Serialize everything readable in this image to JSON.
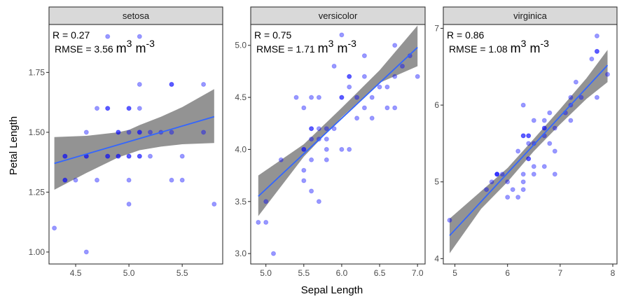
{
  "chart_data": {
    "type": "scatter",
    "title": "",
    "xlabel": "Sepal Length",
    "ylabel": "Petal Length",
    "grid": false,
    "legend": "none",
    "point_color": "#0000ff",
    "fit_color": "#3366ff",
    "ribbon_color": "#808080",
    "strip_color": "#d9d9d9",
    "facets": [
      {
        "strip_label": "setosa",
        "annotation_r": "R = 0.27",
        "annotation_rmse": "RMSE = 3.56",
        "annotation_unit_base1": "m",
        "annotation_unit_exp1": "3",
        "annotation_unit_base2": "m",
        "annotation_unit_exp2": "-3",
        "xlim": [
          4.25,
          5.88
        ],
        "ylim": [
          0.95,
          1.95
        ],
        "xticks": [
          4.5,
          5.0,
          5.5
        ],
        "xtick_labels": [
          "4.5",
          "5.0",
          "5.5"
        ],
        "yticks": [
          1.0,
          1.25,
          1.5,
          1.75
        ],
        "ytick_labels": [
          "1.00",
          "1.25",
          "1.50",
          "1.75"
        ],
        "fit": {
          "x": [
            4.3,
            5.8
          ],
          "y": [
            1.37,
            1.565
          ]
        },
        "ribbon": {
          "x": [
            4.3,
            4.6,
            4.9,
            5.0,
            5.1,
            5.3,
            5.5,
            5.8
          ],
          "lower": [
            1.26,
            1.33,
            1.395,
            1.41,
            1.425,
            1.44,
            1.45,
            1.455
          ],
          "upper": [
            1.48,
            1.485,
            1.5,
            1.51,
            1.53,
            1.565,
            1.605,
            1.68
          ]
        },
        "points": [
          [
            4.3,
            1.1
          ],
          [
            4.4,
            1.4
          ],
          [
            4.4,
            1.3
          ],
          [
            4.4,
            1.3
          ],
          [
            4.4,
            1.4
          ],
          [
            4.5,
            1.3
          ],
          [
            4.6,
            1.5
          ],
          [
            4.6,
            1.4
          ],
          [
            4.6,
            1.4
          ],
          [
            4.6,
            1.0
          ],
          [
            4.7,
            1.6
          ],
          [
            4.7,
            1.3
          ],
          [
            4.8,
            1.6
          ],
          [
            4.8,
            1.6
          ],
          [
            4.8,
            1.4
          ],
          [
            4.8,
            1.4
          ],
          [
            4.8,
            1.9
          ],
          [
            4.9,
            1.5
          ],
          [
            4.9,
            1.5
          ],
          [
            4.9,
            1.4
          ],
          [
            4.9,
            1.4
          ],
          [
            5.0,
            1.6
          ],
          [
            5.0,
            1.6
          ],
          [
            5.0,
            1.5
          ],
          [
            5.0,
            1.4
          ],
          [
            5.0,
            1.4
          ],
          [
            5.0,
            1.3
          ],
          [
            5.0,
            1.2
          ],
          [
            5.1,
            1.9
          ],
          [
            5.1,
            1.7
          ],
          [
            5.1,
            1.6
          ],
          [
            5.1,
            1.5
          ],
          [
            5.1,
            1.5
          ],
          [
            5.1,
            1.4
          ],
          [
            5.1,
            1.4
          ],
          [
            5.2,
            1.5
          ],
          [
            5.2,
            1.4
          ],
          [
            5.3,
            1.5
          ],
          [
            5.4,
            1.7
          ],
          [
            5.4,
            1.7
          ],
          [
            5.4,
            1.5
          ],
          [
            5.4,
            1.3
          ],
          [
            5.5,
            1.4
          ],
          [
            5.5,
            1.3
          ],
          [
            5.7,
            1.7
          ],
          [
            5.7,
            1.5
          ],
          [
            5.8,
            1.2
          ]
        ]
      },
      {
        "strip_label": "versicolor",
        "annotation_r": "R = 0.75",
        "annotation_rmse": "RMSE = 1.71",
        "annotation_unit_base1": "m",
        "annotation_unit_exp1": "3",
        "annotation_unit_base2": "m",
        "annotation_unit_exp2": "-3",
        "xlim": [
          4.8,
          7.1
        ],
        "ylim": [
          2.9,
          5.2
        ],
        "xticks": [
          5.0,
          5.5,
          6.0,
          6.5,
          7.0
        ],
        "xtick_labels": [
          "5.0",
          "5.5",
          "6.0",
          "6.5",
          "7.0"
        ],
        "yticks": [
          3.0,
          3.5,
          4.0,
          4.5,
          5.0
        ],
        "ytick_labels": [
          "3.0",
          "3.5",
          "4.0",
          "4.5",
          "5.0"
        ],
        "fit": {
          "x": [
            4.9,
            7.0
          ],
          "y": [
            3.55,
            4.98
          ]
        },
        "ribbon": {
          "x": [
            4.9,
            5.5,
            6.0,
            6.5,
            7.0
          ],
          "lower": [
            3.36,
            3.93,
            4.31,
            4.64,
            4.8
          ],
          "upper": [
            3.75,
            4.05,
            4.4,
            4.76,
            5.19
          ]
        },
        "points": [
          [
            4.9,
            3.3
          ],
          [
            5.0,
            3.5
          ],
          [
            5.0,
            3.3
          ],
          [
            5.1,
            3.0
          ],
          [
            5.2,
            3.9
          ],
          [
            5.4,
            4.5
          ],
          [
            5.5,
            4.0
          ],
          [
            5.5,
            4.0
          ],
          [
            5.5,
            3.8
          ],
          [
            5.5,
            3.7
          ],
          [
            5.5,
            4.4
          ],
          [
            5.6,
            4.5
          ],
          [
            5.6,
            4.2
          ],
          [
            5.6,
            4.2
          ],
          [
            5.6,
            4.1
          ],
          [
            5.6,
            3.9
          ],
          [
            5.6,
            3.6
          ],
          [
            5.7,
            4.5
          ],
          [
            5.7,
            4.2
          ],
          [
            5.7,
            4.1
          ],
          [
            5.7,
            3.5
          ],
          [
            5.8,
            4.1
          ],
          [
            5.8,
            4.0
          ],
          [
            5.8,
            3.9
          ],
          [
            5.8,
            4.2
          ],
          [
            5.9,
            4.8
          ],
          [
            5.9,
            4.2
          ],
          [
            6.0,
            4.5
          ],
          [
            6.0,
            4.5
          ],
          [
            6.0,
            4.0
          ],
          [
            6.0,
            5.1
          ],
          [
            6.1,
            4.7
          ],
          [
            6.1,
            4.7
          ],
          [
            6.1,
            4.6
          ],
          [
            6.1,
            4.0
          ],
          [
            6.2,
            4.5
          ],
          [
            6.2,
            4.3
          ],
          [
            6.3,
            4.9
          ],
          [
            6.3,
            4.7
          ],
          [
            6.3,
            4.4
          ],
          [
            6.4,
            4.5
          ],
          [
            6.4,
            4.3
          ],
          [
            6.5,
            4.6
          ],
          [
            6.6,
            4.6
          ],
          [
            6.6,
            4.4
          ],
          [
            6.7,
            5.0
          ],
          [
            6.7,
            4.7
          ],
          [
            6.7,
            4.4
          ],
          [
            6.8,
            4.8
          ],
          [
            6.9,
            4.9
          ],
          [
            7.0,
            4.7
          ]
        ]
      },
      {
        "strip_label": "virginica",
        "annotation_r": "R = 0.86",
        "annotation_rmse": "RMSE = 1.08",
        "annotation_unit_base1": "m",
        "annotation_unit_exp1": "3",
        "annotation_unit_base2": "m",
        "annotation_unit_exp2": "-3",
        "xlim": [
          4.78,
          8.08
        ],
        "ylim": [
          3.93,
          7.05
        ],
        "xticks": [
          5,
          6,
          7,
          8
        ],
        "xtick_labels": [
          "5",
          "6",
          "7",
          "8"
        ],
        "yticks": [
          4,
          5,
          6,
          7
        ],
        "ytick_labels": [
          "4",
          "5",
          "6",
          "7"
        ],
        "fit": {
          "x": [
            4.9,
            7.9
          ],
          "y": [
            4.3,
            6.52
          ]
        },
        "ribbon": {
          "x": [
            4.9,
            5.5,
            6.0,
            6.5,
            7.0,
            7.5,
            7.9
          ],
          "lower": [
            4.07,
            4.65,
            5.0,
            5.4,
            5.75,
            6.08,
            6.3
          ],
          "upper": [
            4.52,
            4.88,
            5.18,
            5.56,
            5.95,
            6.35,
            6.72
          ]
        },
        "points": [
          [
            4.9,
            4.5
          ],
          [
            5.6,
            4.9
          ],
          [
            5.7,
            5.0
          ],
          [
            5.8,
            5.1
          ],
          [
            5.8,
            5.1
          ],
          [
            5.8,
            5.1
          ],
          [
            5.9,
            5.1
          ],
          [
            6.0,
            5.0
          ],
          [
            6.0,
            4.8
          ],
          [
            6.1,
            4.9
          ],
          [
            6.2,
            4.8
          ],
          [
            6.2,
            5.4
          ],
          [
            6.3,
            5.1
          ],
          [
            6.3,
            5.0
          ],
          [
            6.3,
            4.9
          ],
          [
            6.3,
            5.6
          ],
          [
            6.3,
            5.6
          ],
          [
            6.3,
            6.0
          ],
          [
            6.4,
            5.5
          ],
          [
            6.4,
            5.6
          ],
          [
            6.4,
            5.3
          ],
          [
            6.4,
            5.3
          ],
          [
            6.4,
            5.6
          ],
          [
            6.5,
            5.1
          ],
          [
            6.5,
            5.2
          ],
          [
            6.5,
            5.5
          ],
          [
            6.5,
            5.8
          ],
          [
            6.7,
            5.2
          ],
          [
            6.7,
            5.7
          ],
          [
            6.7,
            5.7
          ],
          [
            6.7,
            5.8
          ],
          [
            6.7,
            5.6
          ],
          [
            6.8,
            5.5
          ],
          [
            6.8,
            5.9
          ],
          [
            6.9,
            5.1
          ],
          [
            6.9,
            5.4
          ],
          [
            6.9,
            5.7
          ],
          [
            7.1,
            5.9
          ],
          [
            7.2,
            6.0
          ],
          [
            7.2,
            5.8
          ],
          [
            7.2,
            6.1
          ],
          [
            7.3,
            6.3
          ],
          [
            7.4,
            6.1
          ],
          [
            7.6,
            6.6
          ],
          [
            7.7,
            6.7
          ],
          [
            7.7,
            6.7
          ],
          [
            7.7,
            6.9
          ],
          [
            7.7,
            6.1
          ],
          [
            7.9,
            6.4
          ]
        ]
      }
    ]
  }
}
